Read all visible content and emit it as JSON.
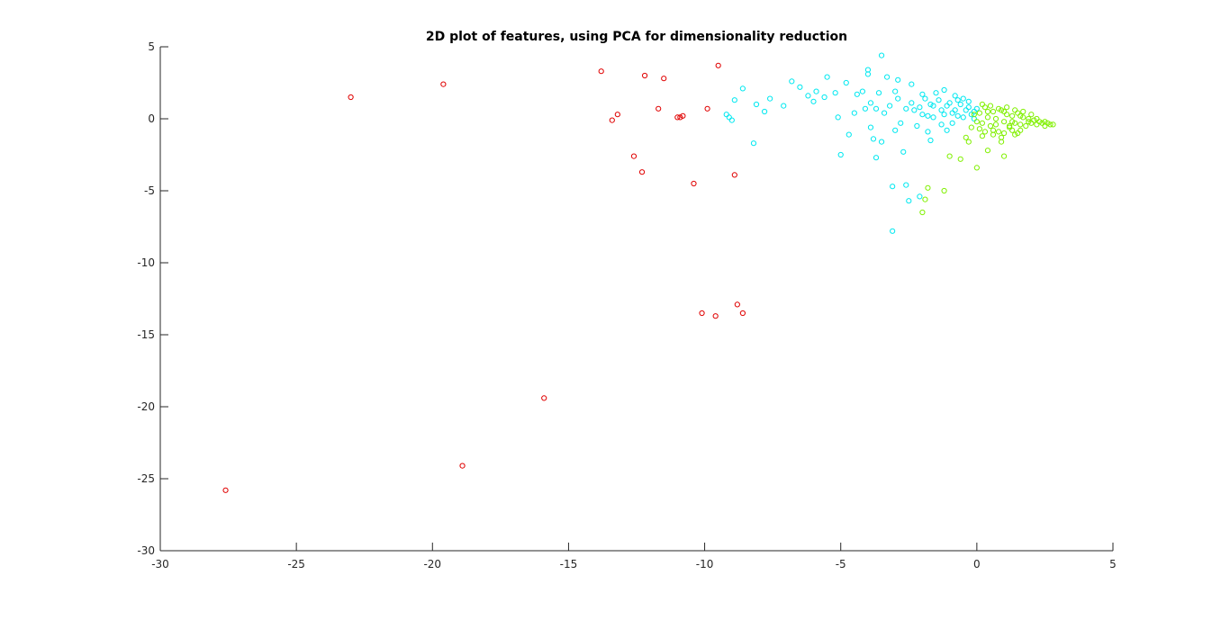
{
  "chart_data": {
    "type": "scatter",
    "title": "2D plot of features, using PCA for dimensionality reduction",
    "xlabel": "",
    "ylabel": "",
    "xlim": [
      -30,
      5
    ],
    "ylim": [
      -30,
      5
    ],
    "xticks": [
      -30,
      -25,
      -20,
      -15,
      -10,
      -5,
      0,
      5
    ],
    "yticks": [
      -30,
      -25,
      -20,
      -15,
      -10,
      -5,
      0,
      5
    ],
    "grid": false,
    "marker": "circle-open",
    "series": [
      {
        "color": "#e00000",
        "points": [
          [
            -27.6,
            -25.8
          ],
          [
            -23.0,
            1.5
          ],
          [
            -19.6,
            2.4
          ],
          [
            -18.9,
            -24.1
          ],
          [
            -15.9,
            -19.4
          ],
          [
            -13.8,
            3.3
          ],
          [
            -13.4,
            -0.1
          ],
          [
            -13.2,
            0.3
          ],
          [
            -12.6,
            -2.6
          ],
          [
            -12.3,
            -3.7
          ],
          [
            -12.2,
            3.0
          ],
          [
            -11.7,
            0.7
          ],
          [
            -11.5,
            2.8
          ],
          [
            -11.0,
            0.1
          ],
          [
            -10.9,
            0.1
          ],
          [
            -10.8,
            0.2
          ],
          [
            -10.4,
            -4.5
          ],
          [
            -10.1,
            -13.5
          ],
          [
            -9.9,
            0.7
          ],
          [
            -9.5,
            3.7
          ],
          [
            -9.6,
            -13.7
          ],
          [
            -8.9,
            -3.9
          ],
          [
            -8.8,
            -12.9
          ],
          [
            -8.6,
            -13.5
          ]
        ]
      },
      {
        "color": "#00e8f0",
        "points": [
          [
            -9.2,
            0.3
          ],
          [
            -9.1,
            0.1
          ],
          [
            -9.0,
            -0.1
          ],
          [
            -8.9,
            1.3
          ],
          [
            -8.6,
            2.1
          ],
          [
            -8.2,
            -1.7
          ],
          [
            -8.1,
            1.0
          ],
          [
            -7.8,
            0.5
          ],
          [
            -7.6,
            1.4
          ],
          [
            -7.1,
            0.9
          ],
          [
            -6.8,
            2.6
          ],
          [
            -6.5,
            2.2
          ],
          [
            -6.2,
            1.6
          ],
          [
            -5.9,
            1.9
          ],
          [
            -5.6,
            1.5
          ],
          [
            -5.2,
            1.8
          ],
          [
            -5.1,
            0.1
          ],
          [
            -5.0,
            -2.5
          ],
          [
            -4.8,
            2.5
          ],
          [
            -4.7,
            -1.1
          ],
          [
            -4.4,
            1.7
          ],
          [
            -4.2,
            1.9
          ],
          [
            -4.0,
            3.4
          ],
          [
            -4.0,
            3.1
          ],
          [
            -3.9,
            1.1
          ],
          [
            -3.8,
            -1.4
          ],
          [
            -3.7,
            -2.7
          ],
          [
            -3.6,
            1.8
          ],
          [
            -3.5,
            4.4
          ],
          [
            -3.4,
            0.4
          ],
          [
            -3.3,
            2.9
          ],
          [
            -3.2,
            0.9
          ],
          [
            -3.1,
            -4.7
          ],
          [
            -3.1,
            -7.8
          ],
          [
            -3.0,
            1.9
          ],
          [
            -2.9,
            2.7
          ],
          [
            -2.8,
            -0.3
          ],
          [
            -2.7,
            -2.3
          ],
          [
            -2.6,
            -4.6
          ],
          [
            -2.5,
            -5.7
          ],
          [
            -2.4,
            1.1
          ],
          [
            -2.3,
            0.6
          ],
          [
            -2.2,
            -0.5
          ],
          [
            -2.1,
            -5.4
          ],
          [
            -2.0,
            0.3
          ],
          [
            -1.9,
            1.4
          ],
          [
            -1.8,
            0.2
          ],
          [
            -1.7,
            -1.5
          ],
          [
            -1.6,
            0.9
          ],
          [
            -1.5,
            1.8
          ],
          [
            -1.4,
            1.3
          ],
          [
            -1.3,
            0.6
          ],
          [
            -1.2,
            2.0
          ],
          [
            -1.1,
            -0.8
          ],
          [
            -1.0,
            1.1
          ],
          [
            -0.9,
            0.4
          ],
          [
            -0.8,
            1.6
          ],
          [
            -0.7,
            0.2
          ],
          [
            -0.6,
            1.0
          ],
          [
            -0.5,
            1.4
          ],
          [
            -0.4,
            0.6
          ],
          [
            -0.3,
            0.8
          ],
          [
            -0.2,
            0.3
          ],
          [
            -0.1,
            0.5
          ],
          [
            0.0,
            0.7
          ],
          [
            -3.9,
            -0.6
          ],
          [
            -4.1,
            0.7
          ],
          [
            -3.5,
            -1.6
          ],
          [
            -2.9,
            1.4
          ],
          [
            -2.6,
            0.7
          ],
          [
            -2.1,
            0.8
          ],
          [
            -1.8,
            -0.9
          ],
          [
            -1.6,
            0.1
          ],
          [
            -1.3,
            -0.4
          ],
          [
            -1.1,
            0.9
          ],
          [
            -0.9,
            -0.3
          ],
          [
            -0.7,
            1.3
          ],
          [
            -0.5,
            0.1
          ],
          [
            -0.3,
            1.2
          ],
          [
            -0.1,
            0.0
          ],
          [
            -6.0,
            1.2
          ],
          [
            -5.5,
            2.9
          ],
          [
            -4.5,
            0.4
          ],
          [
            -3.7,
            0.7
          ],
          [
            -3.0,
            -0.8
          ],
          [
            -2.4,
            2.4
          ],
          [
            -2.0,
            1.7
          ],
          [
            -1.7,
            1.0
          ],
          [
            -1.2,
            0.3
          ],
          [
            -0.8,
            0.6
          ]
        ]
      },
      {
        "color": "#80f000",
        "points": [
          [
            -2.0,
            -6.5
          ],
          [
            -1.9,
            -5.6
          ],
          [
            -1.8,
            -4.8
          ],
          [
            -1.2,
            -5.0
          ],
          [
            -1.0,
            -2.6
          ],
          [
            -0.6,
            -2.8
          ],
          [
            -0.3,
            -1.6
          ],
          [
            0.0,
            -3.4
          ],
          [
            0.2,
            -1.2
          ],
          [
            0.4,
            -2.2
          ],
          [
            0.6,
            -0.8
          ],
          [
            0.9,
            -1.6
          ],
          [
            1.0,
            -2.6
          ],
          [
            1.2,
            -0.5
          ],
          [
            1.4,
            -1.1
          ],
          [
            0.1,
            0.4
          ],
          [
            0.2,
            -0.3
          ],
          [
            0.3,
            0.8
          ],
          [
            0.4,
            0.1
          ],
          [
            0.5,
            -0.5
          ],
          [
            0.6,
            0.5
          ],
          [
            0.7,
            0.0
          ],
          [
            0.8,
            -0.9
          ],
          [
            0.9,
            0.6
          ],
          [
            1.0,
            -0.2
          ],
          [
            1.1,
            0.3
          ],
          [
            1.2,
            -0.6
          ],
          [
            1.3,
            0.2
          ],
          [
            1.4,
            -0.3
          ],
          [
            1.5,
            0.4
          ],
          [
            1.6,
            -0.4
          ],
          [
            1.7,
            0.1
          ],
          [
            1.8,
            -0.5
          ],
          [
            1.9,
            0.0
          ],
          [
            2.0,
            -0.3
          ],
          [
            2.1,
            -0.1
          ],
          [
            2.2,
            -0.4
          ],
          [
            2.3,
            -0.2
          ],
          [
            2.4,
            -0.3
          ],
          [
            2.5,
            -0.5
          ],
          [
            2.6,
            -0.3
          ],
          [
            2.7,
            -0.4
          ],
          [
            2.8,
            -0.4
          ],
          [
            0.2,
            1.0
          ],
          [
            0.5,
            0.9
          ],
          [
            0.8,
            0.7
          ],
          [
            1.1,
            0.8
          ],
          [
            1.4,
            0.6
          ],
          [
            1.7,
            0.5
          ],
          [
            2.0,
            0.3
          ],
          [
            0.3,
            -0.9
          ],
          [
            0.6,
            -1.1
          ],
          [
            1.0,
            -1.0
          ],
          [
            1.3,
            -0.8
          ],
          [
            1.6,
            -0.8
          ],
          [
            -0.2,
            -0.6
          ],
          [
            -0.1,
            0.3
          ],
          [
            0.0,
            -0.2
          ],
          [
            0.1,
            -0.7
          ],
          [
            -0.4,
            -1.3
          ],
          [
            0.4,
            0.5
          ],
          [
            0.7,
            -0.4
          ],
          [
            1.0,
            0.5
          ],
          [
            1.3,
            -0.2
          ],
          [
            1.6,
            0.2
          ],
          [
            1.9,
            -0.2
          ],
          [
            2.2,
            0.0
          ],
          [
            2.5,
            -0.2
          ],
          [
            0.9,
            -1.3
          ],
          [
            1.5,
            -1.0
          ]
        ]
      }
    ]
  }
}
